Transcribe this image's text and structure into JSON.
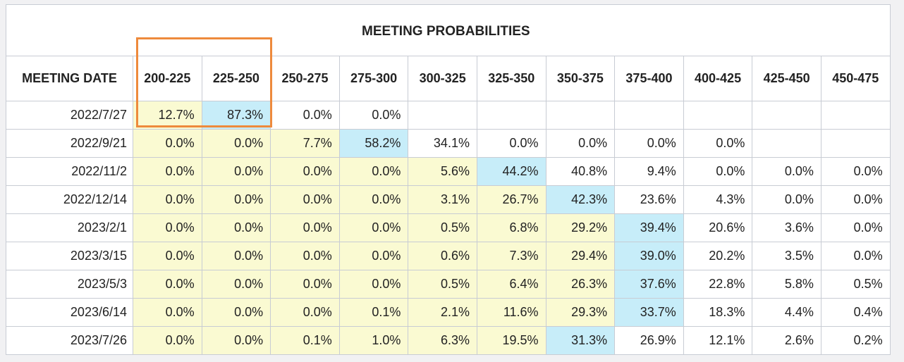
{
  "table": {
    "title": "MEETING PROBABILITIES",
    "date_header": "MEETING DATE",
    "bins": [
      "200-225",
      "225-250",
      "250-275",
      "275-300",
      "300-325",
      "325-350",
      "350-375",
      "375-400",
      "400-425",
      "425-450",
      "450-475"
    ],
    "rows": [
      {
        "date": "2022/7/27",
        "values": [
          "12.7%",
          "87.3%",
          "0.0%",
          "0.0%",
          "",
          "",
          "",
          "",
          "",
          "",
          ""
        ],
        "highlight": [
          "y",
          "b",
          "",
          "",
          "",
          "",
          "",
          "",
          "",
          "",
          ""
        ]
      },
      {
        "date": "2022/9/21",
        "values": [
          "0.0%",
          "0.0%",
          "7.7%",
          "58.2%",
          "34.1%",
          "0.0%",
          "0.0%",
          "0.0%",
          "0.0%",
          "",
          ""
        ],
        "highlight": [
          "y",
          "y",
          "y",
          "b",
          "",
          "",
          "",
          "",
          "",
          "",
          ""
        ]
      },
      {
        "date": "2022/11/2",
        "values": [
          "0.0%",
          "0.0%",
          "0.0%",
          "0.0%",
          "5.6%",
          "44.2%",
          "40.8%",
          "9.4%",
          "0.0%",
          "0.0%",
          "0.0%"
        ],
        "highlight": [
          "y",
          "y",
          "y",
          "y",
          "y",
          "b",
          "",
          "",
          "",
          "",
          ""
        ]
      },
      {
        "date": "2022/12/14",
        "values": [
          "0.0%",
          "0.0%",
          "0.0%",
          "0.0%",
          "3.1%",
          "26.7%",
          "42.3%",
          "23.6%",
          "4.3%",
          "0.0%",
          "0.0%"
        ],
        "highlight": [
          "y",
          "y",
          "y",
          "y",
          "y",
          "y",
          "b",
          "",
          "",
          "",
          ""
        ]
      },
      {
        "date": "2023/2/1",
        "values": [
          "0.0%",
          "0.0%",
          "0.0%",
          "0.0%",
          "0.5%",
          "6.8%",
          "29.2%",
          "39.4%",
          "20.6%",
          "3.6%",
          "0.0%"
        ],
        "highlight": [
          "y",
          "y",
          "y",
          "y",
          "y",
          "y",
          "y",
          "b",
          "",
          "",
          ""
        ]
      },
      {
        "date": "2023/3/15",
        "values": [
          "0.0%",
          "0.0%",
          "0.0%",
          "0.0%",
          "0.6%",
          "7.3%",
          "29.4%",
          "39.0%",
          "20.2%",
          "3.5%",
          "0.0%"
        ],
        "highlight": [
          "y",
          "y",
          "y",
          "y",
          "y",
          "y",
          "y",
          "b",
          "",
          "",
          ""
        ]
      },
      {
        "date": "2023/5/3",
        "values": [
          "0.0%",
          "0.0%",
          "0.0%",
          "0.0%",
          "0.5%",
          "6.4%",
          "26.3%",
          "37.6%",
          "22.8%",
          "5.8%",
          "0.5%"
        ],
        "highlight": [
          "y",
          "y",
          "y",
          "y",
          "y",
          "y",
          "y",
          "b",
          "",
          "",
          ""
        ]
      },
      {
        "date": "2023/6/14",
        "values": [
          "0.0%",
          "0.0%",
          "0.0%",
          "0.1%",
          "2.1%",
          "11.6%",
          "29.3%",
          "33.7%",
          "18.3%",
          "4.4%",
          "0.4%"
        ],
        "highlight": [
          "y",
          "y",
          "y",
          "y",
          "y",
          "y",
          "y",
          "b",
          "",
          "",
          ""
        ]
      },
      {
        "date": "2023/7/26",
        "values": [
          "0.0%",
          "0.0%",
          "0.1%",
          "1.0%",
          "6.3%",
          "19.5%",
          "31.3%",
          "26.9%",
          "12.1%",
          "2.6%",
          "0.2%"
        ],
        "highlight": [
          "y",
          "y",
          "y",
          "y",
          "y",
          "y",
          "b",
          "",
          "",
          "",
          ""
        ]
      }
    ]
  },
  "colors": {
    "highlight_yellow": "#fafad2",
    "highlight_blue": "#c7edf9",
    "annotation_box": "#ee8a3c",
    "grid_border": "#c8ccd4"
  },
  "annotation": {
    "type": "rectangle-outline",
    "covers": [
      "200-225",
      "225-250"
    ],
    "covers_rows": [
      "header",
      "2022/7/27"
    ]
  }
}
